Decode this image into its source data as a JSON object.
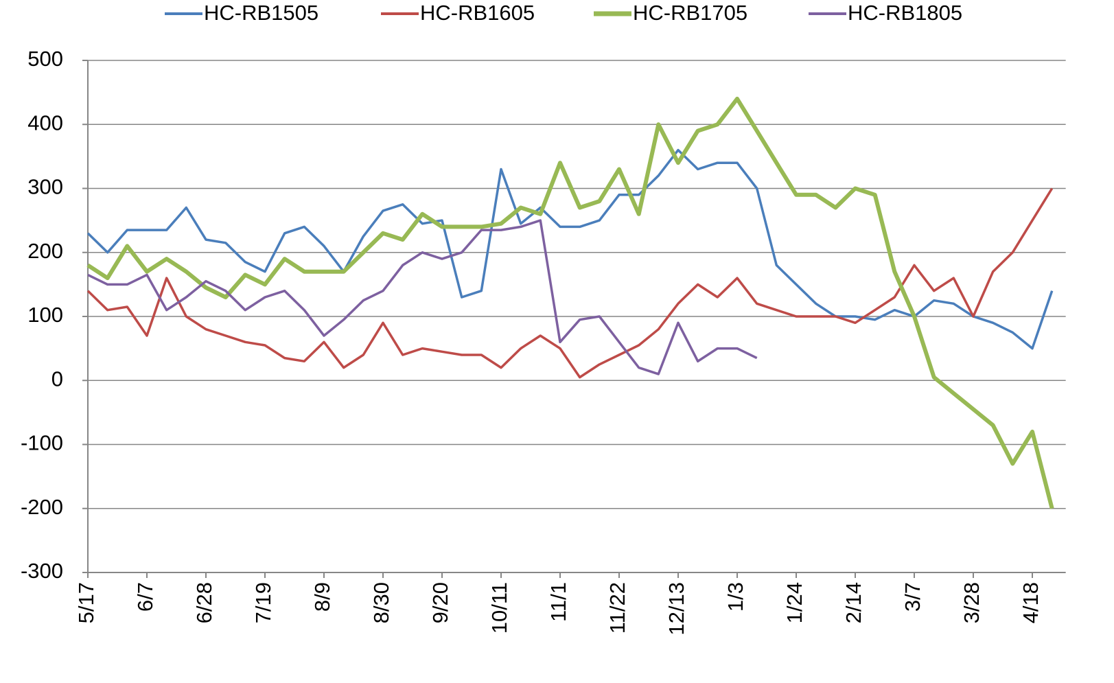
{
  "chart_data": {
    "type": "line",
    "categories": [
      "5/17",
      null,
      null,
      "6/7",
      null,
      null,
      "6/28",
      null,
      null,
      "7/19",
      null,
      null,
      "8/9",
      null,
      null,
      "8/30",
      null,
      null,
      "9/20",
      null,
      null,
      "10/11",
      null,
      null,
      "11/1",
      null,
      null,
      "11/22",
      null,
      null,
      "12/13",
      null,
      null,
      "1/3",
      null,
      null,
      "1/24",
      null,
      null,
      "2/14",
      null,
      null,
      "3/7",
      null,
      null,
      "3/28",
      null,
      null,
      "4/18",
      null
    ],
    "series": [
      {
        "name": "HC-RB1505",
        "color": "#4a7ebb",
        "values": [
          230,
          200,
          235,
          235,
          235,
          270,
          220,
          215,
          185,
          170,
          230,
          240,
          210,
          170,
          225,
          265,
          275,
          245,
          250,
          130,
          140,
          330,
          245,
          270,
          240,
          240,
          250,
          290,
          290,
          320,
          360,
          330,
          340,
          340,
          300,
          180,
          150,
          120,
          100,
          100,
          95,
          110,
          100,
          125,
          120,
          100,
          90,
          75,
          50,
          140
        ]
      },
      {
        "name": "HC-RB1605",
        "color": "#be4b48",
        "values": [
          140,
          110,
          115,
          70,
          160,
          100,
          80,
          70,
          60,
          55,
          35,
          30,
          60,
          20,
          40,
          90,
          40,
          50,
          45,
          40,
          40,
          20,
          50,
          70,
          50,
          5,
          25,
          40,
          55,
          80,
          120,
          150,
          130,
          160,
          120,
          110,
          100,
          100,
          100,
          90,
          110,
          130,
          180,
          140,
          160,
          100,
          170,
          200,
          250,
          300
        ]
      },
      {
        "name": "HC-RB1705",
        "color": "#98b954",
        "values": [
          180,
          160,
          210,
          170,
          190,
          170,
          145,
          130,
          165,
          150,
          190,
          170,
          170,
          170,
          200,
          230,
          220,
          260,
          240,
          240,
          240,
          245,
          270,
          260,
          340,
          270,
          280,
          330,
          260,
          400,
          340,
          390,
          400,
          440,
          390,
          340,
          290,
          290,
          270,
          300,
          290,
          170,
          100,
          5,
          -20,
          -45,
          -70,
          -130,
          -80,
          -200
        ]
      },
      {
        "name": "HC-RB1805",
        "color": "#7d60a0",
        "values": [
          165,
          150,
          150,
          165,
          110,
          130,
          155,
          140,
          110,
          130,
          140,
          110,
          70,
          95,
          125,
          140,
          180,
          200,
          190,
          200,
          235,
          235,
          240,
          250,
          60,
          95,
          100,
          60,
          20,
          10,
          90,
          30,
          50,
          50,
          35,
          null,
          null,
          null,
          null,
          null,
          null,
          null,
          null,
          null,
          null,
          null,
          null,
          null,
          null,
          null
        ]
      }
    ],
    "ylim": [
      -300,
      500
    ],
    "yticks": [
      -300,
      -200,
      -100,
      0,
      100,
      200,
      300,
      400,
      500
    ],
    "grid": true,
    "legend": "top"
  }
}
